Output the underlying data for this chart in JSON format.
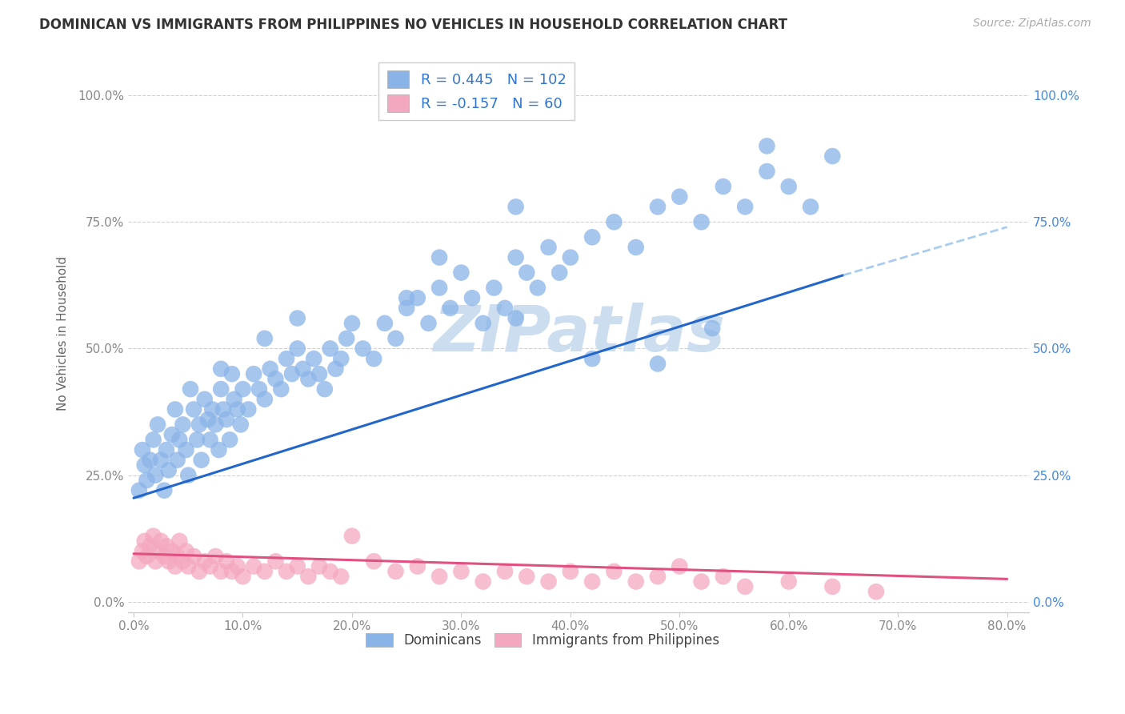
{
  "title": "DOMINICAN VS IMMIGRANTS FROM PHILIPPINES NO VEHICLES IN HOUSEHOLD CORRELATION CHART",
  "source": "Source: ZipAtlas.com",
  "ylabel": "No Vehicles in Household",
  "background_color": "#ffffff",
  "grid_color": "#d0d0d0",
  "xlim": [
    -0.005,
    0.82
  ],
  "ylim": [
    -0.02,
    1.08
  ],
  "ytick_values": [
    0.0,
    0.25,
    0.5,
    0.75,
    1.0
  ],
  "ytick_labels": [
    "0.0%",
    "25.0%",
    "50.0%",
    "75.0%",
    "100.0%"
  ],
  "xtick_values": [
    0.0,
    0.1,
    0.2,
    0.3,
    0.4,
    0.5,
    0.6,
    0.7,
    0.8
  ],
  "xtick_labels": [
    "0.0%",
    "10.0%",
    "20.0%",
    "30.0%",
    "40.0%",
    "50.0%",
    "60.0%",
    "70.0%",
    "80.0%"
  ],
  "dom_color": "#8ab4e8",
  "phi_color": "#f4a8c0",
  "dom_line_color": "#2266cc",
  "phi_line_color": "#e05080",
  "dom_dashed_color": "#aaccee",
  "R_dom": 0.445,
  "N_dom": 102,
  "R_phi": -0.157,
  "N_phi": 60,
  "watermark_text": "ZIPatlas",
  "watermark_color": "#ccddf0",
  "legend_label_dom": "Dominicans",
  "legend_label_phi": "Immigrants from Philippines",
  "dom_trend_x0": 0.0,
  "dom_trend_y0": 0.205,
  "dom_trend_x1": 0.65,
  "dom_trend_y1": 0.645,
  "dom_trend_dash_x1": 0.8,
  "dom_trend_dash_y1": 0.74,
  "phi_trend_x0": 0.0,
  "phi_trend_y0": 0.095,
  "phi_trend_x1": 0.8,
  "phi_trend_y1": 0.045,
  "dominican_x": [
    0.005,
    0.008,
    0.01,
    0.012,
    0.015,
    0.018,
    0.02,
    0.022,
    0.025,
    0.028,
    0.03,
    0.032,
    0.035,
    0.038,
    0.04,
    0.042,
    0.045,
    0.048,
    0.05,
    0.052,
    0.055,
    0.058,
    0.06,
    0.062,
    0.065,
    0.068,
    0.07,
    0.072,
    0.075,
    0.078,
    0.08,
    0.082,
    0.085,
    0.088,
    0.09,
    0.092,
    0.095,
    0.098,
    0.1,
    0.105,
    0.11,
    0.115,
    0.12,
    0.125,
    0.13,
    0.135,
    0.14,
    0.145,
    0.15,
    0.155,
    0.16,
    0.165,
    0.17,
    0.175,
    0.18,
    0.185,
    0.19,
    0.195,
    0.2,
    0.21,
    0.22,
    0.23,
    0.24,
    0.25,
    0.26,
    0.27,
    0.28,
    0.29,
    0.3,
    0.31,
    0.32,
    0.33,
    0.34,
    0.35,
    0.36,
    0.37,
    0.38,
    0.39,
    0.4,
    0.42,
    0.44,
    0.46,
    0.48,
    0.5,
    0.52,
    0.54,
    0.56,
    0.58,
    0.6,
    0.62,
    0.64,
    0.35,
    0.42,
    0.48,
    0.53,
    0.58,
    0.35,
    0.25,
    0.15,
    0.08,
    0.12,
    0.28
  ],
  "dominican_y": [
    0.22,
    0.3,
    0.27,
    0.24,
    0.28,
    0.32,
    0.25,
    0.35,
    0.28,
    0.22,
    0.3,
    0.26,
    0.33,
    0.38,
    0.28,
    0.32,
    0.35,
    0.3,
    0.25,
    0.42,
    0.38,
    0.32,
    0.35,
    0.28,
    0.4,
    0.36,
    0.32,
    0.38,
    0.35,
    0.3,
    0.42,
    0.38,
    0.36,
    0.32,
    0.45,
    0.4,
    0.38,
    0.35,
    0.42,
    0.38,
    0.45,
    0.42,
    0.4,
    0.46,
    0.44,
    0.42,
    0.48,
    0.45,
    0.5,
    0.46,
    0.44,
    0.48,
    0.45,
    0.42,
    0.5,
    0.46,
    0.48,
    0.52,
    0.55,
    0.5,
    0.48,
    0.55,
    0.52,
    0.58,
    0.6,
    0.55,
    0.62,
    0.58,
    0.65,
    0.6,
    0.55,
    0.62,
    0.58,
    0.68,
    0.65,
    0.62,
    0.7,
    0.65,
    0.68,
    0.72,
    0.75,
    0.7,
    0.78,
    0.8,
    0.75,
    0.82,
    0.78,
    0.85,
    0.82,
    0.78,
    0.88,
    0.56,
    0.48,
    0.47,
    0.54,
    0.9,
    0.78,
    0.6,
    0.56,
    0.46,
    0.52,
    0.68
  ],
  "philippine_x": [
    0.005,
    0.008,
    0.01,
    0.012,
    0.015,
    0.018,
    0.02,
    0.022,
    0.025,
    0.028,
    0.03,
    0.032,
    0.035,
    0.038,
    0.04,
    0.042,
    0.045,
    0.048,
    0.05,
    0.055,
    0.06,
    0.065,
    0.07,
    0.075,
    0.08,
    0.085,
    0.09,
    0.095,
    0.1,
    0.11,
    0.12,
    0.13,
    0.14,
    0.15,
    0.16,
    0.17,
    0.18,
    0.19,
    0.2,
    0.22,
    0.24,
    0.26,
    0.28,
    0.3,
    0.32,
    0.34,
    0.36,
    0.38,
    0.4,
    0.42,
    0.44,
    0.46,
    0.48,
    0.5,
    0.52,
    0.54,
    0.56,
    0.6,
    0.64,
    0.68
  ],
  "philippine_y": [
    0.08,
    0.1,
    0.12,
    0.09,
    0.11,
    0.13,
    0.08,
    0.1,
    0.12,
    0.09,
    0.11,
    0.08,
    0.1,
    0.07,
    0.09,
    0.12,
    0.08,
    0.1,
    0.07,
    0.09,
    0.06,
    0.08,
    0.07,
    0.09,
    0.06,
    0.08,
    0.06,
    0.07,
    0.05,
    0.07,
    0.06,
    0.08,
    0.06,
    0.07,
    0.05,
    0.07,
    0.06,
    0.05,
    0.13,
    0.08,
    0.06,
    0.07,
    0.05,
    0.06,
    0.04,
    0.06,
    0.05,
    0.04,
    0.06,
    0.04,
    0.06,
    0.04,
    0.05,
    0.07,
    0.04,
    0.05,
    0.03,
    0.04,
    0.03,
    0.02
  ]
}
